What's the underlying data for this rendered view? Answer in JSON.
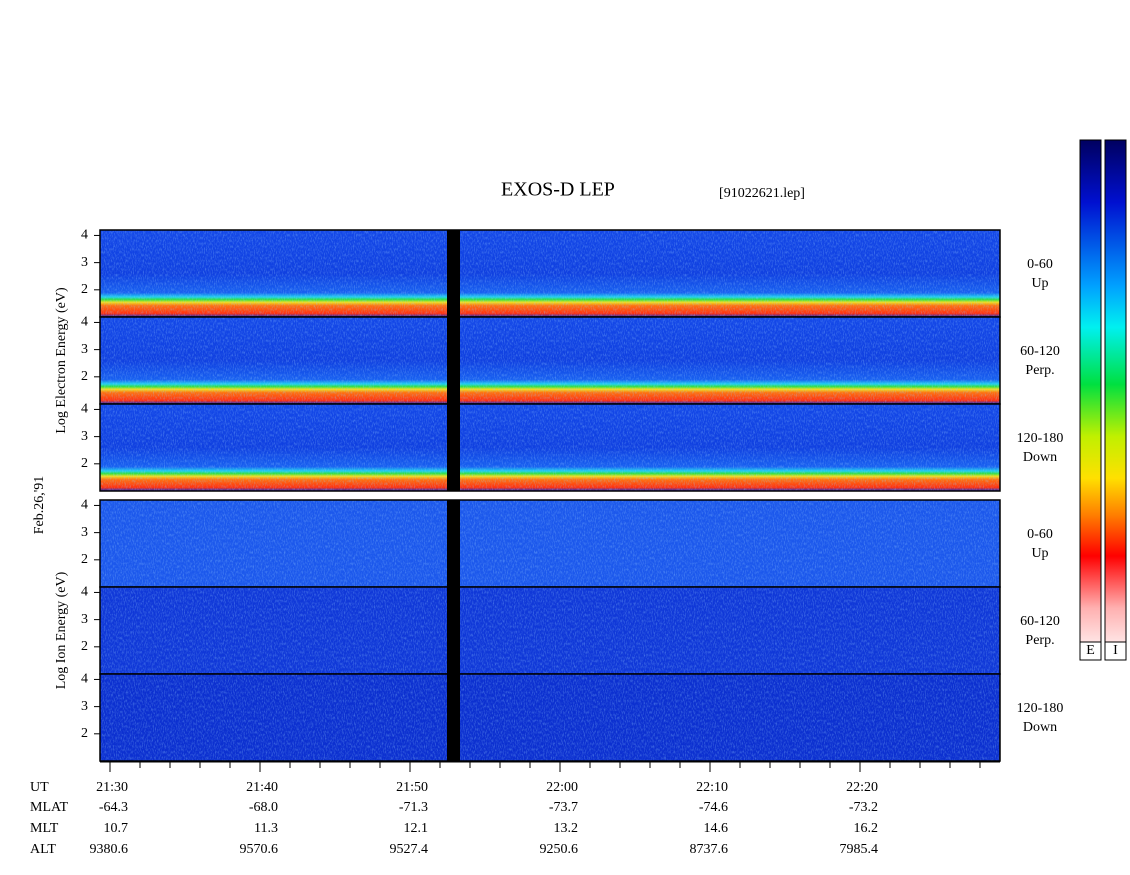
{
  "chart_data": {
    "type": "spectrogram",
    "title": "EXOS-D LEP",
    "subtitle": "[91022621.lep]",
    "date_label": "Feb.26,'91",
    "ylim": [
      1,
      4.2
    ],
    "yticks": [
      2,
      3,
      4
    ],
    "groups": [
      {
        "ylabel": "Log Electron Energy (eV)",
        "species": "electron",
        "panels": [
          {
            "label": [
              "0-60",
              "Up"
            ]
          },
          {
            "label": [
              "60-120",
              "Perp."
            ]
          },
          {
            "label": [
              "120-180",
              "Down"
            ]
          }
        ]
      },
      {
        "ylabel": "Log Ion Energy (eV)",
        "species": "ion",
        "panels": [
          {
            "label": [
              "0-60",
              "Up"
            ]
          },
          {
            "label": [
              "60-120",
              "Perp."
            ]
          },
          {
            "label": [
              "120-180",
              "Down"
            ]
          }
        ]
      }
    ],
    "x_rows": [
      {
        "name": "UT",
        "values": [
          "21:30",
          "21:40",
          "21:50",
          "22:00",
          "22:10",
          "22:20"
        ]
      },
      {
        "name": "MLAT",
        "values": [
          -64.3,
          -68.0,
          -71.3,
          -73.7,
          -74.6,
          -73.2
        ],
        "value_labels": [
          "-64.3",
          "-68.0",
          "-71.3",
          "-73.7",
          "-74.6",
          "-73.2"
        ]
      },
      {
        "name": "MLT",
        "values": [
          10.7,
          11.3,
          12.1,
          13.2,
          14.6,
          16.2
        ]
      },
      {
        "name": "ALT",
        "values": [
          9380.6,
          9570.6,
          9527.4,
          9250.6,
          8737.6,
          7985.4
        ]
      }
    ],
    "colorbar": {
      "labels": [
        "E",
        "I"
      ]
    }
  }
}
